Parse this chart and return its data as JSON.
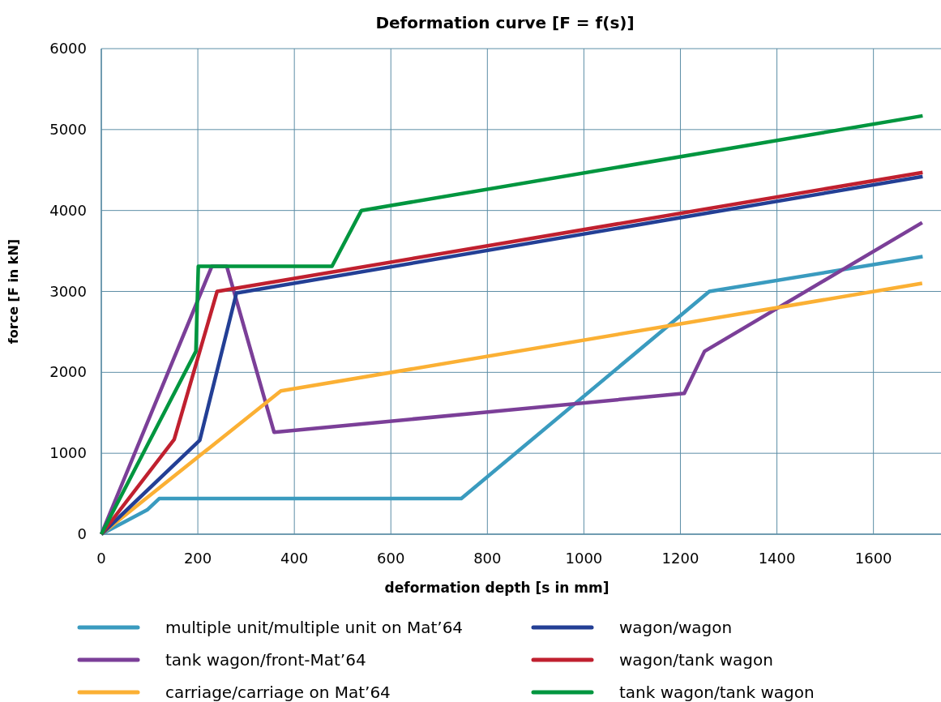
{
  "chart_data": {
    "type": "line",
    "title": "Deformation curve [F = f(s)]",
    "xlabel": "deformation depth [s in mm]",
    "ylabel": "force [F in kN]",
    "xlim": [
      0,
      1740
    ],
    "xticks": [
      0,
      200,
      400,
      600,
      800,
      1000,
      1200,
      1400,
      1600
    ],
    "ylim": [
      0,
      6000
    ],
    "yticks": [
      0,
      1000,
      2000,
      3000,
      4000,
      5000,
      6000
    ],
    "grid": true,
    "legend": "bottom",
    "marker": "none",
    "line_style": "solid",
    "series": [
      {
        "name": "multiple unit/multiple unit on Mat’64",
        "color": "#3a9bbf",
        "x": [
          0,
          95,
          120,
          746,
          1260,
          1702
        ],
        "values": [
          0,
          300,
          440,
          440,
          3000,
          3430
        ]
      },
      {
        "name": "tank wagon/front-Mat’64",
        "color": "#7b3f98",
        "x": [
          0,
          229,
          260,
          358,
          1208,
          1250,
          1701
        ],
        "values": [
          0,
          3310,
          3310,
          1260,
          1740,
          2260,
          3850
        ]
      },
      {
        "name": "carriage/carriage on Mat’64",
        "color": "#fbb034",
        "x": [
          0,
          372,
          1701
        ],
        "values": [
          0,
          1770,
          3100
        ]
      },
      {
        "name": "wagon/wagon",
        "color": "#233f95",
        "x": [
          0,
          204,
          280,
          1702
        ],
        "values": [
          0,
          1160,
          2980,
          4420
        ]
      },
      {
        "name": "wagon/tank wagon",
        "color": "#c0202f",
        "x": [
          0,
          151,
          240,
          1702
        ],
        "values": [
          0,
          1170,
          3000,
          4470
        ]
      },
      {
        "name": "tank wagon/tank wagon",
        "color": "#00963f",
        "x": [
          0,
          196,
          201,
          478,
          539,
          1702
        ],
        "values": [
          0,
          2260,
          3310,
          3310,
          4000,
          5170
        ]
      }
    ]
  }
}
